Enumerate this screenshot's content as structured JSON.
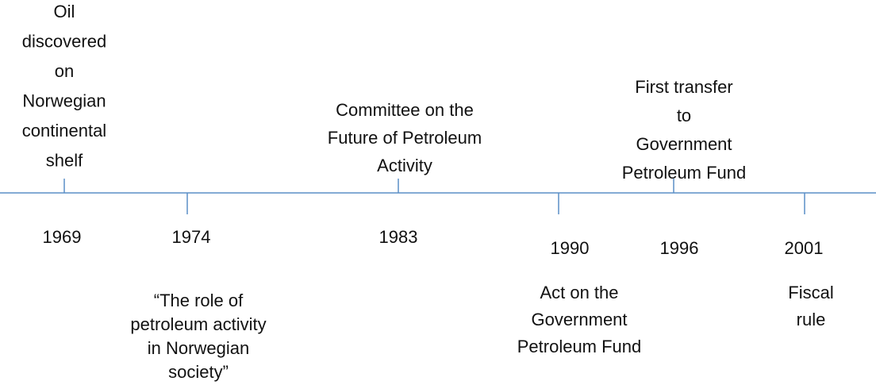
{
  "events": [
    {
      "year": "1969",
      "lines": [
        "Oil",
        "discovered",
        "on",
        "Norwegian",
        "continental",
        "shelf"
      ]
    },
    {
      "year": "1974",
      "lines": [
        "“The role of",
        "petroleum activity",
        "in Norwegian",
        "society”"
      ]
    },
    {
      "year": "1983",
      "lines": [
        "Committee on the",
        "Future of Petroleum",
        "Activity"
      ]
    },
    {
      "year": "1990",
      "lines": [
        "Act on the",
        "Government",
        "Petroleum Fund"
      ]
    },
    {
      "year": "1996",
      "lines": [
        "First transfer",
        "to",
        "Government",
        "Petroleum Fund"
      ]
    },
    {
      "year": "2001",
      "lines": [
        "Fiscal",
        "rule"
      ]
    }
  ]
}
